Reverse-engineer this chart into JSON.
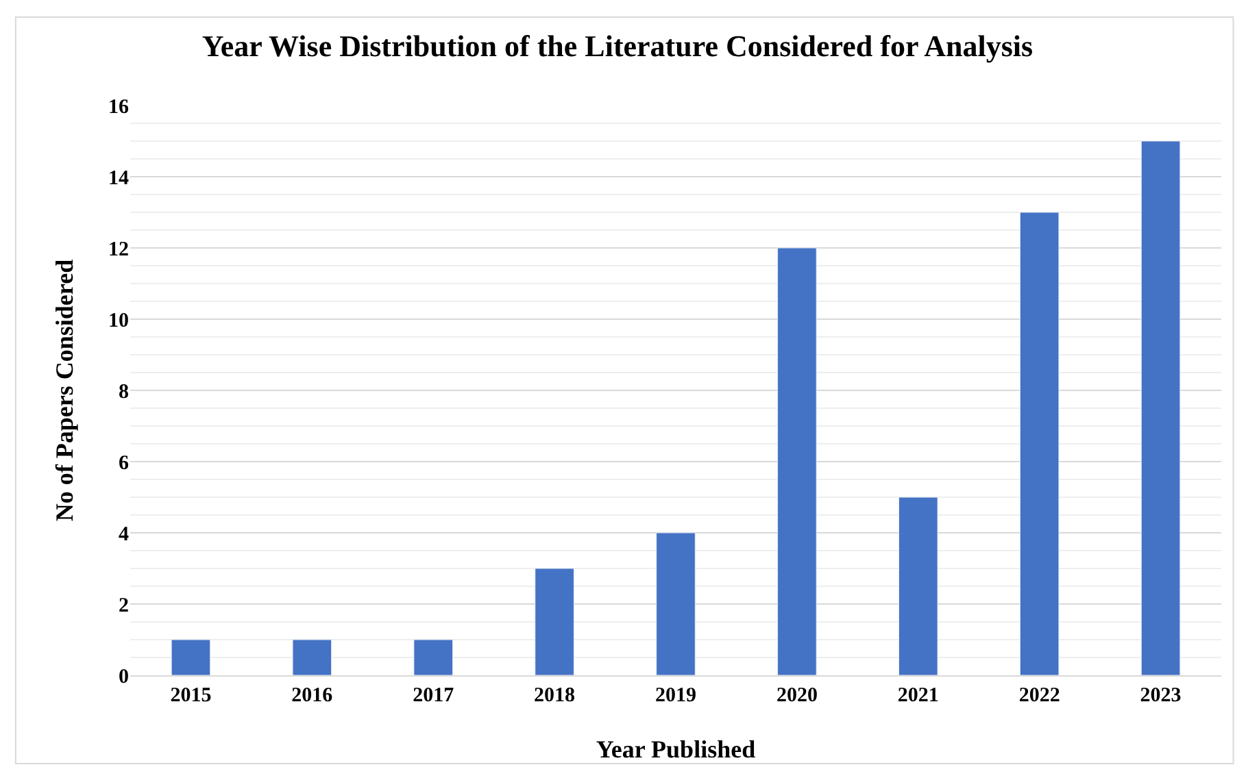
{
  "chart_data": {
    "type": "bar",
    "title": "Year Wise Distribution of the Literature Considered for Analysis",
    "xlabel": "Year Published",
    "ylabel": "No of Papers Considered",
    "categories": [
      "2015",
      "2016",
      "2017",
      "2018",
      "2019",
      "2020",
      "2021",
      "2022",
      "2023"
    ],
    "values": [
      1,
      1,
      1,
      3,
      4,
      12,
      5,
      13,
      15
    ],
    "color": "#4472c4",
    "ylim": [
      0,
      16
    ],
    "yticks": [
      0,
      2,
      4,
      6,
      8,
      10,
      12,
      14,
      16
    ],
    "grid": "y"
  }
}
